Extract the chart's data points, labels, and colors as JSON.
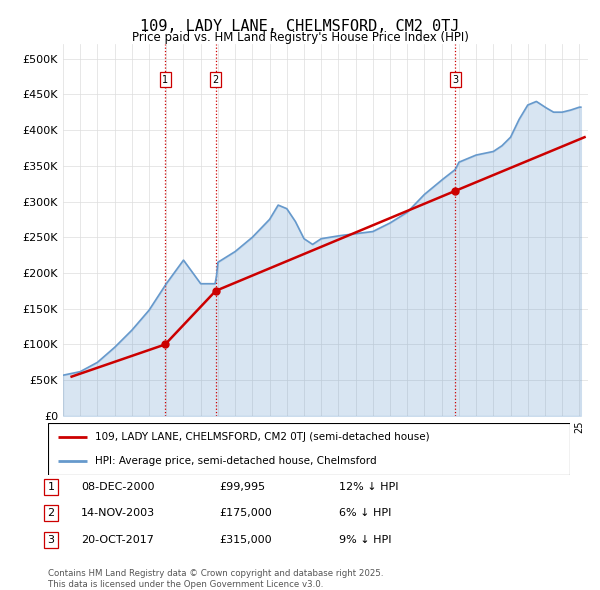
{
  "title": "109, LADY LANE, CHELMSFORD, CM2 0TJ",
  "subtitle": "Price paid vs. HM Land Registry's House Price Index (HPI)",
  "hpi_color": "#6699cc",
  "price_color": "#cc0000",
  "vline_color": "#cc0000",
  "background_color": "#ffffff",
  "grid_color": "#dddddd",
  "ylim": [
    0,
    520000
  ],
  "yticks": [
    0,
    50000,
    100000,
    150000,
    200000,
    250000,
    300000,
    350000,
    400000,
    450000,
    500000
  ],
  "ytick_labels": [
    "£0",
    "£50K",
    "£100K",
    "£150K",
    "£200K",
    "£250K",
    "£300K",
    "£350K",
    "£400K",
    "£450K",
    "£500K"
  ],
  "xlim_start": 1995.0,
  "xlim_end": 2025.5,
  "purchases": [
    {
      "date_year": 2000.93,
      "price": 99995,
      "label": "1"
    },
    {
      "date_year": 2003.87,
      "price": 175000,
      "label": "2"
    },
    {
      "date_year": 2017.8,
      "price": 315000,
      "label": "3"
    }
  ],
  "vlines": [
    2000.93,
    2003.87,
    2017.8
  ],
  "legend_price_label": "109, LADY LANE, CHELMSFORD, CM2 0TJ (semi-detached house)",
  "legend_hpi_label": "HPI: Average price, semi-detached house, Chelmsford",
  "table_rows": [
    {
      "num": "1",
      "date": "08-DEC-2000",
      "price": "£99,995",
      "note": "12% ↓ HPI"
    },
    {
      "num": "2",
      "date": "14-NOV-2003",
      "price": "£175,000",
      "note": "6% ↓ HPI"
    },
    {
      "num": "3",
      "date": "20-OCT-2017",
      "price": "£315,000",
      "note": "9% ↓ HPI"
    }
  ],
  "footer": "Contains HM Land Registry data © Crown copyright and database right 2025.\nThis data is licensed under the Open Government Licence v3.0.",
  "price_data_x": [
    1995.5,
    2000.93,
    2003.87,
    2017.8,
    2025.3
  ],
  "price_data_y": [
    55000,
    99995,
    175000,
    315000,
    390000
  ]
}
